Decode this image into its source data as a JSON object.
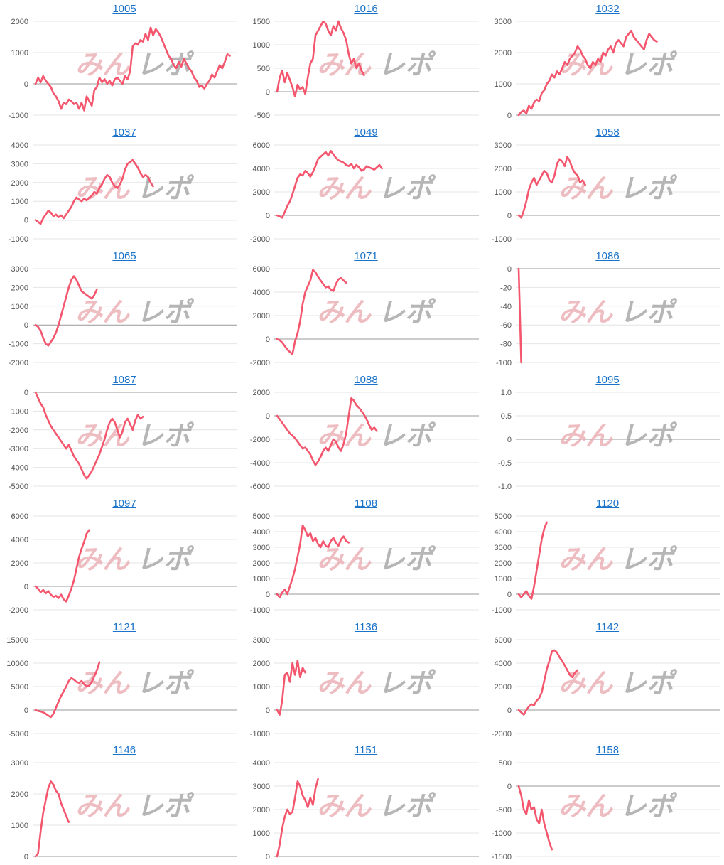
{
  "watermark": {
    "part1": "みん",
    "part2": "レポ"
  },
  "colors": {
    "line": "#f4566e",
    "title": "#1a73c8",
    "grid": "#e4e4e4",
    "axis": "#999999"
  },
  "chart_data": [
    {
      "type": "line",
      "title": "1005",
      "ylim": [
        -1000,
        2000
      ],
      "yticks": [
        "2000",
        "1000",
        "0",
        "-1000"
      ],
      "values": [
        0,
        200,
        50,
        250,
        100,
        0,
        -100,
        -300,
        -400,
        -550,
        -800,
        -600,
        -650,
        -500,
        -550,
        -650,
        -600,
        -800,
        -600,
        -850,
        -400,
        -550,
        -700,
        -200,
        -100,
        200,
        50,
        150,
        0,
        100,
        -50,
        150,
        200,
        100,
        0,
        250,
        150,
        400,
        1200,
        1300,
        1250,
        1400,
        1350,
        1600,
        1400,
        1800,
        1550,
        1750,
        1650,
        1500,
        1300,
        1100,
        900,
        800,
        600,
        500,
        700,
        550,
        800,
        650,
        500,
        400,
        200,
        100,
        -100,
        -50,
        -150,
        0,
        100,
        300,
        200,
        400,
        600,
        500,
        700,
        950,
        900
      ]
    },
    {
      "type": "line",
      "title": "1016",
      "ylim": [
        -500,
        1500
      ],
      "yticks": [
        "1500",
        "1000",
        "500",
        "0",
        "-500"
      ],
      "values": [
        0,
        300,
        450,
        200,
        400,
        250,
        100,
        -100,
        150,
        50,
        100,
        -50,
        300,
        600,
        700,
        1200,
        1300,
        1400,
        1500,
        1450,
        1300,
        1200,
        1400,
        1300,
        1500,
        1350,
        1250,
        1100,
        800,
        600,
        700,
        500,
        600,
        450,
        350
      ]
    },
    {
      "type": "line",
      "title": "1032",
      "ylim": [
        0,
        3000
      ],
      "yticks": [
        "3000",
        "2000",
        "1000",
        "0"
      ],
      "values": [
        0,
        100,
        150,
        50,
        300,
        200,
        400,
        500,
        450,
        700,
        800,
        1000,
        1100,
        1300,
        1200,
        1400,
        1300,
        1500,
        1700,
        1600,
        1800,
        1900,
        2000,
        2200,
        2100,
        1900,
        1800,
        1600,
        1500,
        1700,
        1600,
        1800,
        1700,
        2000,
        1900,
        2100,
        2200,
        2000,
        2300,
        2400,
        2300,
        2200,
        2500,
        2600,
        2700,
        2500,
        2400,
        2300,
        2200,
        2100,
        2400,
        2600,
        2500,
        2400,
        2350
      ]
    },
    {
      "type": "line",
      "title": "1037",
      "ylim": [
        -1000,
        4000
      ],
      "yticks": [
        "4000",
        "3000",
        "2000",
        "1000",
        "0",
        "-1000"
      ],
      "values": [
        0,
        -100,
        -200,
        100,
        300,
        500,
        400,
        200,
        300,
        150,
        250,
        100,
        300,
        500,
        700,
        1000,
        1200,
        1100,
        1000,
        1150,
        1050,
        1200,
        1300,
        1500,
        1400,
        1700,
        1900,
        2200,
        2400,
        2300,
        2000,
        1800,
        1700,
        1900,
        2200,
        2700,
        3000,
        3100,
        3200,
        3000,
        2800,
        2500,
        2300,
        2400,
        2300,
        2000,
        1800
      ]
    },
    {
      "type": "line",
      "title": "1049",
      "ylim": [
        -2000,
        6000
      ],
      "yticks": [
        "6000",
        "4000",
        "2000",
        "0",
        "-2000"
      ],
      "values": [
        0,
        -100,
        -200,
        300,
        800,
        1200,
        1800,
        2500,
        3200,
        3500,
        3400,
        3800,
        3600,
        3300,
        3700,
        4200,
        4800,
        5000,
        5200,
        5400,
        5100,
        5500,
        5200,
        4900,
        4700,
        4600,
        4500,
        4300,
        4200,
        4400,
        4000,
        4300,
        4100,
        3800,
        3900,
        4200,
        4100,
        4000,
        3900,
        4100,
        4300,
        4000
      ]
    },
    {
      "type": "line",
      "title": "1058",
      "ylim": [
        -1000,
        3000
      ],
      "yticks": [
        "3000",
        "2000",
        "1000",
        "0",
        "-1000"
      ],
      "values": [
        0,
        -100,
        200,
        600,
        1100,
        1400,
        1600,
        1300,
        1500,
        1700,
        1900,
        1800,
        1500,
        1400,
        1700,
        2200,
        2400,
        2300,
        2100,
        2500,
        2300,
        2000,
        1800,
        1700,
        1400,
        1500,
        1300
      ]
    },
    {
      "type": "line",
      "title": "1065",
      "ylim": [
        -2000,
        3000
      ],
      "yticks": [
        "3000",
        "2000",
        "1000",
        "0",
        "-1000",
        "-2000"
      ],
      "values": [
        0,
        -100,
        -300,
        -700,
        -1000,
        -1100,
        -900,
        -700,
        -400,
        0,
        500,
        1000,
        1500,
        2000,
        2400,
        2600,
        2400,
        2100,
        1800,
        1700,
        1600,
        1500,
        1400,
        1600,
        1900
      ]
    },
    {
      "type": "line",
      "title": "1071",
      "ylim": [
        -2000,
        6000
      ],
      "yticks": [
        "6000",
        "4000",
        "2000",
        "0",
        "-2000"
      ],
      "values": [
        0,
        -100,
        -300,
        -600,
        -900,
        -1100,
        -1300,
        -200,
        500,
        1500,
        3000,
        4000,
        4500,
        5000,
        5900,
        5700,
        5300,
        5000,
        4700,
        4400,
        4500,
        4200,
        4100,
        4700,
        5100,
        5200,
        5000,
        4800
      ]
    },
    {
      "type": "line",
      "title": "1086",
      "ylim": [
        -100,
        0
      ],
      "yticks": [
        "0",
        "-20",
        "-40",
        "-60",
        "-80",
        "-100"
      ],
      "values": [
        0,
        -100
      ]
    },
    {
      "type": "line",
      "title": "1087",
      "ylim": [
        -5000,
        0
      ],
      "yticks": [
        "0",
        "-1000",
        "-2000",
        "-3000",
        "-4000",
        "-5000"
      ],
      "values": [
        0,
        -300,
        -600,
        -800,
        -1200,
        -1500,
        -1800,
        -2000,
        -2200,
        -2400,
        -2600,
        -2800,
        -3000,
        -2800,
        -3100,
        -3400,
        -3600,
        -3800,
        -4100,
        -4400,
        -4600,
        -4400,
        -4200,
        -3900,
        -3600,
        -3300,
        -2900,
        -2500,
        -2000,
        -1600,
        -1400,
        -1600,
        -2000,
        -2400,
        -2100,
        -1600,
        -1400,
        -1700,
        -2000,
        -1500,
        -1200,
        -1400,
        -1300
      ]
    },
    {
      "type": "line",
      "title": "1088",
      "ylim": [
        -6000,
        2000
      ],
      "yticks": [
        "2000",
        "0",
        "-2000",
        "-4000",
        "-6000"
      ],
      "values": [
        0,
        -300,
        -600,
        -900,
        -1200,
        -1500,
        -1700,
        -1900,
        -2200,
        -2500,
        -2800,
        -2700,
        -3000,
        -3300,
        -3800,
        -4200,
        -3900,
        -3500,
        -3000,
        -2700,
        -3000,
        -2500,
        -2000,
        -2200,
        -2700,
        -3000,
        -2400,
        -1500,
        0,
        1500,
        1300,
        900,
        700,
        400,
        100,
        -300,
        -800,
        -1200,
        -1000,
        -1300
      ]
    },
    {
      "type": "line",
      "title": "1095",
      "ylim": [
        -1,
        1
      ],
      "yticks": [
        "1.0",
        "0.5",
        "0",
        "-0.5",
        "-1.0"
      ],
      "values": []
    },
    {
      "type": "line",
      "title": "1097",
      "ylim": [
        -2000,
        6000
      ],
      "yticks": [
        "6000",
        "4000",
        "2000",
        "0",
        "-2000"
      ],
      "values": [
        0,
        -200,
        -500,
        -300,
        -600,
        -400,
        -700,
        -900,
        -800,
        -1000,
        -700,
        -1100,
        -1300,
        -800,
        -200,
        500,
        1500,
        2500,
        3200,
        3800,
        4500,
        4800
      ]
    },
    {
      "type": "line",
      "title": "1108",
      "ylim": [
        -1000,
        5000
      ],
      "yticks": [
        "5000",
        "4000",
        "3000",
        "2000",
        "1000",
        "0",
        "-1000"
      ],
      "values": [
        0,
        -200,
        100,
        300,
        0,
        500,
        1000,
        1600,
        2400,
        3200,
        4400,
        4100,
        3700,
        3900,
        3400,
        3600,
        3200,
        3000,
        3400,
        3100,
        3000,
        3400,
        3600,
        3300,
        3100,
        3500,
        3700,
        3400,
        3300
      ]
    },
    {
      "type": "line",
      "title": "1120",
      "ylim": [
        -1000,
        5000
      ],
      "yticks": [
        "5000",
        "4000",
        "3000",
        "2000",
        "1000",
        "0",
        "-1000"
      ],
      "values": [
        0,
        -200,
        0,
        200,
        -100,
        -300,
        500,
        1500,
        2500,
        3500,
        4200,
        4600
      ]
    },
    {
      "type": "line",
      "title": "1121",
      "ylim": [
        -5000,
        15000
      ],
      "yticks": [
        "15000",
        "10000",
        "5000",
        "0",
        "-5000"
      ],
      "values": [
        0,
        -200,
        -300,
        -500,
        -800,
        -1200,
        -1500,
        -800,
        500,
        1800,
        3000,
        4000,
        5000,
        6200,
        6800,
        6500,
        6000,
        5800,
        6200,
        5500,
        5000,
        5200,
        6000,
        7200,
        8500,
        10200
      ]
    },
    {
      "type": "line",
      "title": "1136",
      "ylim": [
        -1000,
        3000
      ],
      "yticks": [
        "3000",
        "2000",
        "1000",
        "0",
        "-1000"
      ],
      "values": [
        0,
        -200,
        400,
        1500,
        1600,
        1200,
        2000,
        1500,
        2100,
        1400,
        1800,
        1600
      ]
    },
    {
      "type": "line",
      "title": "1142",
      "ylim": [
        -2000,
        6000
      ],
      "yticks": [
        "6000",
        "4000",
        "2000",
        "0",
        "-2000"
      ],
      "values": [
        0,
        -200,
        -400,
        0,
        300,
        500,
        400,
        800,
        1000,
        1500,
        2500,
        3500,
        4200,
        5000,
        5100,
        4900,
        4500,
        4200,
        3800,
        3400,
        3000,
        2800,
        3200,
        3400
      ]
    },
    {
      "type": "line",
      "title": "1146",
      "ylim": [
        0,
        3000
      ],
      "yticks": [
        "3000",
        "2000",
        "1000",
        "0"
      ],
      "values": [
        0,
        100,
        800,
        1400,
        1800,
        2200,
        2400,
        2300,
        2100,
        2000,
        1700,
        1500,
        1300,
        1100
      ]
    },
    {
      "type": "line",
      "title": "1151",
      "ylim": [
        0,
        4000
      ],
      "yticks": [
        "4000",
        "3000",
        "2000",
        "1000",
        "0"
      ],
      "values": [
        0,
        500,
        1200,
        1700,
        2000,
        1800,
        1900,
        2500,
        3200,
        3000,
        2600,
        2400,
        2100,
        2500,
        2200,
        2900,
        3300
      ]
    },
    {
      "type": "line",
      "title": "1158",
      "ylim": [
        -1500,
        500
      ],
      "yticks": [
        "500",
        "0",
        "-500",
        "-1000",
        "-1500"
      ],
      "values": [
        0,
        -200,
        -500,
        -600,
        -300,
        -500,
        -450,
        -700,
        -800,
        -500,
        -800,
        -1000,
        -1200,
        -1350
      ]
    }
  ]
}
